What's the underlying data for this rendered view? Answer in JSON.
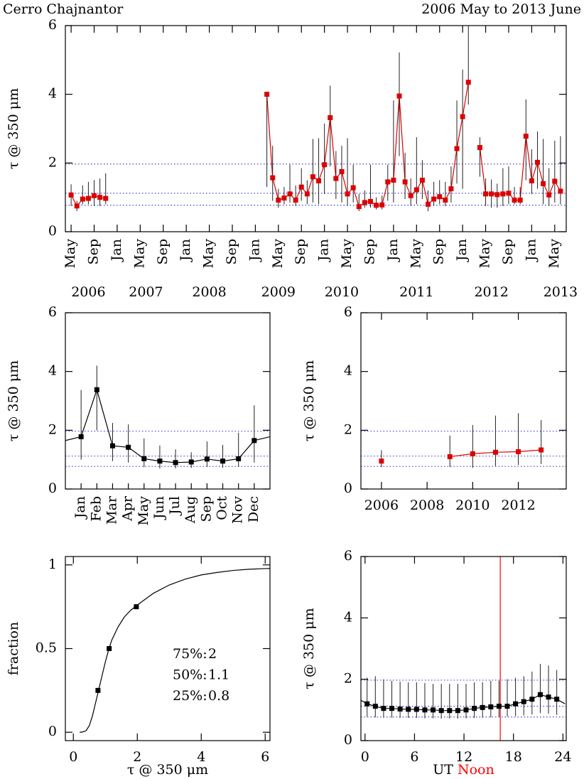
{
  "chart_data": [
    {
      "type": "line",
      "title": "Cerro Chajnantor",
      "subtitle": "2006 May to 2013 June",
      "y_label": "τ @ 350 μm",
      "x": [
        "2006-05",
        "2006-06",
        "2006-07",
        "2006-08",
        "2006-09",
        "2006-10",
        "2006-11",
        "2006-12",
        "2009-03",
        "2009-04",
        "2009-05",
        "2009-06",
        "2009-07",
        "2009-08",
        "2009-09",
        "2009-10",
        "2009-11",
        "2009-12",
        "2010-01",
        "2010-02",
        "2010-03",
        "2010-04",
        "2010-05",
        "2010-06",
        "2010-07",
        "2010-08",
        "2010-09",
        "2010-10",
        "2010-11",
        "2010-12",
        "2011-01",
        "2011-02",
        "2011-03",
        "2011-04",
        "2011-05",
        "2011-06",
        "2011-07",
        "2011-08",
        "2011-09",
        "2011-10",
        "2011-11",
        "2011-12",
        "2012-01",
        "2012-02",
        "2012-03",
        "2012-04",
        "2012-05",
        "2012-06",
        "2012-07",
        "2012-08",
        "2012-09",
        "2012-10",
        "2012-11",
        "2012-12",
        "2013-01",
        "2013-02",
        "2013-03",
        "2013-04",
        "2013-05",
        "2013-06"
      ],
      "xlim": [
        "2006-04",
        "2013-07"
      ],
      "xticks": [
        {
          "value": "2006-05",
          "label": "May"
        },
        {
          "value": "2006-09",
          "label": "Sep"
        },
        {
          "value": "2007-01",
          "label": "Jan"
        },
        {
          "value": "2007-05",
          "label": "May"
        },
        {
          "value": "2007-09",
          "label": "Sep"
        },
        {
          "value": "2008-01",
          "label": "Jan"
        },
        {
          "value": "2008-05",
          "label": "May"
        },
        {
          "value": "2008-09",
          "label": "Sep"
        },
        {
          "value": "2009-01",
          "label": "Jan"
        },
        {
          "value": "2009-05",
          "label": "May"
        },
        {
          "value": "2009-09",
          "label": "Sep"
        },
        {
          "value": "2010-01",
          "label": "Jan"
        },
        {
          "value": "2010-05",
          "label": "May"
        },
        {
          "value": "2010-09",
          "label": "Sep"
        },
        {
          "value": "2011-01",
          "label": "Jan"
        },
        {
          "value": "2011-05",
          "label": "May"
        },
        {
          "value": "2011-09",
          "label": "Sep"
        },
        {
          "value": "2012-01",
          "label": "Jan"
        },
        {
          "value": "2012-05",
          "label": "May"
        },
        {
          "value": "2012-09",
          "label": "Sep"
        },
        {
          "value": "2013-01",
          "label": "Jan"
        },
        {
          "value": "2013-05",
          "label": "May"
        }
      ],
      "x_tick_rotation": -90,
      "x_year_labels": [
        {
          "value": "2006-08",
          "label": "2006"
        },
        {
          "value": "2007-06",
          "label": "2007"
        },
        {
          "value": "2008-05",
          "label": "2008"
        },
        {
          "value": "2009-05",
          "label": "2009"
        },
        {
          "value": "2010-04",
          "label": "2010"
        },
        {
          "value": "2011-05",
          "label": "2011"
        },
        {
          "value": "2012-06",
          "label": "2012"
        },
        {
          "value": "2013-06",
          "label": "2013"
        }
      ],
      "ylim": [
        0,
        6
      ],
      "yticks": [
        0,
        2,
        4,
        6
      ],
      "reference_lines": [
        1.97,
        1.12,
        0.77
      ],
      "reference_color": "#4040d0",
      "series": [
        {
          "color": "#dd0000",
          "marker": "square",
          "values": [
            1.07,
            0.75,
            0.95,
            0.97,
            1.05,
            1.0,
            0.97,
            null,
            4.0,
            1.57,
            0.92,
            0.98,
            1.1,
            0.92,
            1.3,
            1.1,
            1.6,
            1.48,
            1.95,
            3.32,
            1.55,
            1.75,
            1.1,
            1.28,
            0.73,
            0.85,
            0.88,
            0.77,
            0.78,
            1.45,
            1.5,
            3.95,
            1.45,
            1.05,
            1.22,
            1.5,
            0.8,
            0.95,
            1.02,
            0.92,
            1.25,
            2.42,
            3.35,
            4.35,
            null,
            2.45,
            1.1,
            1.1,
            1.08,
            1.1,
            1.12,
            0.92,
            0.92,
            2.78,
            1.48,
            2.02,
            1.4,
            1.07,
            1.47,
            1.18
          ],
          "lower": [
            0.75,
            0.6,
            0.8,
            0.8,
            0.75,
            0.75,
            0.8,
            null,
            1.3,
            0.9,
            0.7,
            0.8,
            0.85,
            0.75,
            0.9,
            0.8,
            0.85,
            0.8,
            1.1,
            1.9,
            0.95,
            0.85,
            0.75,
            0.85,
            0.6,
            0.7,
            0.7,
            0.65,
            0.65,
            0.9,
            0.85,
            2.2,
            0.95,
            0.75,
            0.8,
            0.95,
            0.6,
            0.75,
            0.8,
            0.75,
            0.85,
            1.4,
            1.25,
            3.7,
            null,
            1.6,
            0.75,
            0.7,
            0.7,
            0.75,
            0.8,
            0.8,
            0.8,
            1.5,
            1.1,
            1.25,
            0.8,
            0.75,
            0.85,
            0.8
          ],
          "upper": [
            1.38,
            0.9,
            1.35,
            1.45,
            1.5,
            1.55,
            1.7,
            null,
            4.0,
            2.5,
            1.25,
            1.3,
            1.95,
            1.35,
            1.85,
            1.5,
            2.7,
            2.72,
            3.15,
            4.25,
            2.35,
            2.5,
            2.72,
            1.95,
            1.1,
            1.2,
            1.95,
            1.0,
            1.05,
            1.95,
            3.82,
            5.22,
            2.3,
            1.55,
            2.75,
            2.08,
            1.2,
            1.45,
            1.5,
            1.45,
            1.9,
            3.82,
            4.72,
            6.3,
            null,
            2.75,
            1.55,
            1.52,
            1.4,
            1.85,
            1.9,
            1.3,
            1.3,
            3.85,
            2.4,
            2.92,
            2.7,
            1.85,
            2.65,
            2.78
          ]
        }
      ]
    },
    {
      "type": "line",
      "y_label": "τ @ 350 μm",
      "categories": [
        "Jan",
        "Feb",
        "Mar",
        "Apr",
        "May",
        "Jun",
        "Jul",
        "Aug",
        "Sep",
        "Oct",
        "Nov",
        "Dec"
      ],
      "x_tick_rotation": -90,
      "wrap": true,
      "ylim": [
        0,
        6
      ],
      "yticks": [
        0,
        2,
        4,
        6
      ],
      "reference_lines": [
        1.97,
        1.12,
        0.77
      ],
      "reference_color": "#4040d0",
      "series": [
        {
          "color": "#000000",
          "marker": "square",
          "values": [
            1.78,
            3.38,
            1.47,
            1.42,
            1.03,
            0.95,
            0.9,
            0.92,
            1.02,
            0.95,
            1.03,
            1.65
          ],
          "lower": [
            1.0,
            2.0,
            0.95,
            0.9,
            0.75,
            0.7,
            0.7,
            0.72,
            0.75,
            0.72,
            0.75,
            0.9
          ],
          "upper": [
            3.37,
            4.2,
            2.25,
            2.2,
            1.72,
            1.48,
            1.35,
            1.25,
            1.62,
            1.5,
            1.92,
            2.85
          ]
        }
      ]
    },
    {
      "type": "line",
      "y_label": "τ @ 350 μm",
      "x": [
        2006,
        2007,
        2008,
        2009,
        2010,
        2011,
        2012,
        2013
      ],
      "xlim": [
        2005.1,
        2014.1
      ],
      "xticks": [
        2006,
        2008,
        2010,
        2012
      ],
      "ylim": [
        0,
        6
      ],
      "yticks": [
        0,
        2,
        4,
        6
      ],
      "reference_lines": [
        1.97,
        1.12,
        0.77
      ],
      "reference_color": "#4040d0",
      "series": [
        {
          "color": "#dd0000",
          "marker": "square",
          "values": [
            0.95,
            null,
            null,
            1.1,
            1.2,
            1.25,
            1.27,
            1.33
          ],
          "lower": [
            0.75,
            null,
            null,
            0.75,
            0.72,
            0.78,
            0.82,
            0.85
          ],
          "upper": [
            1.32,
            null,
            null,
            1.82,
            2.18,
            2.5,
            2.58,
            2.35
          ]
        }
      ]
    },
    {
      "type": "line",
      "y_label": "fraction",
      "x_label": "τ @ 350 μm",
      "xlim": [
        -0.25,
        6.15
      ],
      "xticks": [
        0,
        2,
        4,
        6
      ],
      "ylim": [
        -0.05,
        1.05
      ],
      "yticks": [
        0,
        0.5,
        1
      ],
      "annotations": [
        {
          "label": "75%:",
          "value": "2"
        },
        {
          "label": "50%:",
          "value": "1.1"
        },
        {
          "label": "25%:",
          "value": "0.8"
        }
      ],
      "series": [
        {
          "color": "#000000",
          "x": [
            0.2,
            0.3,
            0.4,
            0.5,
            0.6,
            0.7,
            0.8,
            0.9,
            1.0,
            1.1,
            1.2,
            1.4,
            1.6,
            1.8,
            2.0,
            2.5,
            3.0,
            3.5,
            4.0,
            4.5,
            5.0,
            5.5,
            6.0,
            6.3
          ],
          "values": [
            0,
            0.002,
            0.01,
            0.04,
            0.1,
            0.18,
            0.26,
            0.34,
            0.42,
            0.49,
            0.55,
            0.63,
            0.69,
            0.73,
            0.76,
            0.83,
            0.88,
            0.915,
            0.94,
            0.955,
            0.967,
            0.974,
            0.978,
            0.98
          ]
        },
        {
          "color": "#000000",
          "marker": "square",
          "line": false,
          "x": [
            0.77,
            1.12,
            1.97
          ],
          "values": [
            0.25,
            0.5,
            0.75
          ]
        }
      ]
    },
    {
      "type": "line",
      "y_label": "τ @ 350 μm",
      "x_label": "UT",
      "x_label_highlight": "Noon",
      "x": [
        0.25,
        1.25,
        2.25,
        3.25,
        4.25,
        5.25,
        6.25,
        7.25,
        8.25,
        9.25,
        10.25,
        11.25,
        12.25,
        13.25,
        14.25,
        15.25,
        16.25,
        17.25,
        18.25,
        19.25,
        20.25,
        21.25,
        22.25,
        23.25
      ],
      "xlim": [
        -0.5,
        24.4
      ],
      "xticks": [
        0,
        6,
        12,
        18,
        24
      ],
      "wrap_period": 24,
      "vline": 16.4,
      "vline_color": "#ff0000",
      "ylim": [
        0,
        6
      ],
      "yticks": [
        0,
        2,
        4,
        6
      ],
      "reference_lines": [
        1.97,
        1.12,
        0.77
      ],
      "reference_color": "#4040d0",
      "series": [
        {
          "color": "#000000",
          "marker": "square",
          "values": [
            1.2,
            1.12,
            1.05,
            1.05,
            1.03,
            1.02,
            1.02,
            1.0,
            1.0,
            0.98,
            0.98,
            0.98,
            1.0,
            1.05,
            1.08,
            1.1,
            1.12,
            1.12,
            1.2,
            1.27,
            1.35,
            1.5,
            1.42,
            1.35
          ],
          "lower": [
            0.78,
            0.76,
            0.75,
            0.75,
            0.74,
            0.74,
            0.74,
            0.73,
            0.73,
            0.72,
            0.72,
            0.72,
            0.73,
            0.74,
            0.75,
            0.76,
            0.77,
            0.78,
            0.8,
            0.82,
            0.85,
            0.9,
            0.88,
            0.84
          ],
          "upper": [
            2.05,
            2.1,
            2.0,
            1.95,
            1.92,
            1.9,
            1.9,
            1.88,
            1.85,
            1.85,
            1.85,
            1.85,
            1.85,
            1.9,
            1.9,
            1.95,
            1.95,
            2.0,
            2.05,
            2.1,
            2.25,
            2.5,
            2.45,
            2.3
          ]
        }
      ]
    }
  ]
}
